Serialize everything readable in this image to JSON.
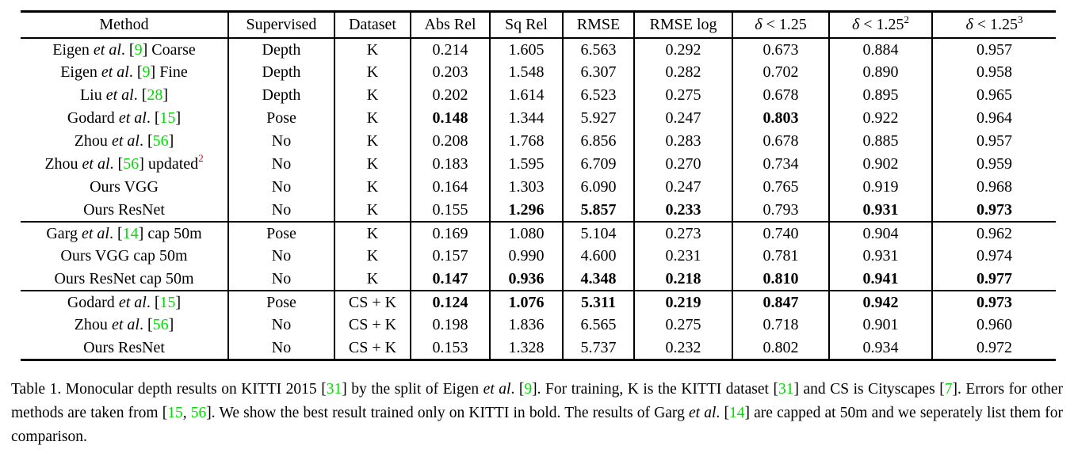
{
  "colors": {
    "citation_green": "#00dd00",
    "superscript_red": "#ee0000",
    "text": "#000000",
    "rule": "#000000",
    "background": "#ffffff"
  },
  "table": {
    "header": [
      {
        "id": "method",
        "segs": [
          {
            "t": "Method"
          }
        ]
      },
      {
        "id": "supervised",
        "segs": [
          {
            "t": "Supervised"
          }
        ]
      },
      {
        "id": "dataset",
        "segs": [
          {
            "t": "Dataset"
          }
        ]
      },
      {
        "id": "abs-rel",
        "segs": [
          {
            "t": "Abs Rel"
          }
        ]
      },
      {
        "id": "sq-rel",
        "segs": [
          {
            "t": "Sq Rel"
          }
        ]
      },
      {
        "id": "rmse",
        "segs": [
          {
            "t": "RMSE"
          }
        ]
      },
      {
        "id": "rmse-log",
        "segs": [
          {
            "t": "RMSE log"
          }
        ]
      },
      {
        "id": "delta-1",
        "segs": [
          {
            "t": "δ",
            "i": true
          },
          {
            "t": " < 1.25"
          }
        ]
      },
      {
        "id": "delta-2",
        "segs": [
          {
            "t": "δ",
            "i": true
          },
          {
            "t": " < 1.25"
          },
          {
            "t": "2",
            "sup": true
          }
        ]
      },
      {
        "id": "delta-3",
        "segs": [
          {
            "t": "δ",
            "i": true
          },
          {
            "t": " < 1.25"
          },
          {
            "t": "3",
            "sup": true
          }
        ]
      }
    ],
    "groups": [
      {
        "rows": [
          {
            "method": [
              {
                "t": "Eigen "
              },
              {
                "t": "et al",
                "i": true
              },
              {
                "t": ". ["
              },
              {
                "t": "9",
                "c": true
              },
              {
                "t": "] Coarse"
              }
            ],
            "supervised": "Depth",
            "dataset": "K",
            "values": [
              "0.214",
              "1.605",
              "6.563",
              "0.292",
              "0.673",
              "0.884",
              "0.957"
            ],
            "bold": [
              false,
              false,
              false,
              false,
              false,
              false,
              false
            ]
          },
          {
            "method": [
              {
                "t": "Eigen "
              },
              {
                "t": "et al",
                "i": true
              },
              {
                "t": ". ["
              },
              {
                "t": "9",
                "c": true
              },
              {
                "t": "] Fine"
              }
            ],
            "supervised": "Depth",
            "dataset": "K",
            "values": [
              "0.203",
              "1.548",
              "6.307",
              "0.282",
              "0.702",
              "0.890",
              "0.958"
            ],
            "bold": [
              false,
              false,
              false,
              false,
              false,
              false,
              false
            ]
          },
          {
            "method": [
              {
                "t": "Liu "
              },
              {
                "t": "et al",
                "i": true
              },
              {
                "t": ". ["
              },
              {
                "t": "28",
                "c": true
              },
              {
                "t": "]"
              }
            ],
            "supervised": "Depth",
            "dataset": "K",
            "values": [
              "0.202",
              "1.614",
              "6.523",
              "0.275",
              "0.678",
              "0.895",
              "0.965"
            ],
            "bold": [
              false,
              false,
              false,
              false,
              false,
              false,
              false
            ]
          },
          {
            "method": [
              {
                "t": "Godard "
              },
              {
                "t": "et al",
                "i": true
              },
              {
                "t": ". ["
              },
              {
                "t": "15",
                "c": true
              },
              {
                "t": "]"
              }
            ],
            "supervised": "Pose",
            "dataset": "K",
            "values": [
              "0.148",
              "1.344",
              "5.927",
              "0.247",
              "0.803",
              "0.922",
              "0.964"
            ],
            "bold": [
              true,
              false,
              false,
              false,
              true,
              false,
              false
            ]
          },
          {
            "method": [
              {
                "t": "Zhou "
              },
              {
                "t": "et al",
                "i": true
              },
              {
                "t": ". ["
              },
              {
                "t": "56",
                "c": true
              },
              {
                "t": "]"
              }
            ],
            "supervised": "No",
            "dataset": "K",
            "values": [
              "0.208",
              "1.768",
              "6.856",
              "0.283",
              "0.678",
              "0.885",
              "0.957"
            ],
            "bold": [
              false,
              false,
              false,
              false,
              false,
              false,
              false
            ]
          },
          {
            "method": [
              {
                "t": "Zhou "
              },
              {
                "t": "et al",
                "i": true
              },
              {
                "t": ". ["
              },
              {
                "t": "56",
                "c": true
              },
              {
                "t": "] updated"
              },
              {
                "t": "2",
                "sup": true,
                "red": true
              }
            ],
            "supervised": "No",
            "dataset": "K",
            "values": [
              "0.183",
              "1.595",
              "6.709",
              "0.270",
              "0.734",
              "0.902",
              "0.959"
            ],
            "bold": [
              false,
              false,
              false,
              false,
              false,
              false,
              false
            ]
          },
          {
            "method": [
              {
                "t": "Ours VGG"
              }
            ],
            "supervised": "No",
            "dataset": "K",
            "values": [
              "0.164",
              "1.303",
              "6.090",
              "0.247",
              "0.765",
              "0.919",
              "0.968"
            ],
            "bold": [
              false,
              false,
              false,
              false,
              false,
              false,
              false
            ]
          },
          {
            "method": [
              {
                "t": "Ours ResNet"
              }
            ],
            "supervised": "No",
            "dataset": "K",
            "values": [
              "0.155",
              "1.296",
              "5.857",
              "0.233",
              "0.793",
              "0.931",
              "0.973"
            ],
            "bold": [
              false,
              true,
              true,
              true,
              false,
              true,
              true
            ]
          }
        ]
      },
      {
        "rows": [
          {
            "method": [
              {
                "t": "Garg "
              },
              {
                "t": "et al",
                "i": true
              },
              {
                "t": ". ["
              },
              {
                "t": "14",
                "c": true
              },
              {
                "t": "] cap 50m"
              }
            ],
            "supervised": "Pose",
            "dataset": "K",
            "values": [
              "0.169",
              "1.080",
              "5.104",
              "0.273",
              "0.740",
              "0.904",
              "0.962"
            ],
            "bold": [
              false,
              false,
              false,
              false,
              false,
              false,
              false
            ]
          },
          {
            "method": [
              {
                "t": "Ours VGG cap 50m"
              }
            ],
            "supervised": "No",
            "dataset": "K",
            "values": [
              "0.157",
              "0.990",
              "4.600",
              "0.231",
              "0.781",
              "0.931",
              "0.974"
            ],
            "bold": [
              false,
              false,
              false,
              false,
              false,
              false,
              false
            ]
          },
          {
            "method": [
              {
                "t": "Ours ResNet cap 50m"
              }
            ],
            "supervised": "No",
            "dataset": "K",
            "values": [
              "0.147",
              "0.936",
              "4.348",
              "0.218",
              "0.810",
              "0.941",
              "0.977"
            ],
            "bold": [
              true,
              true,
              true,
              true,
              true,
              true,
              true
            ]
          }
        ]
      },
      {
        "rows": [
          {
            "method": [
              {
                "t": "Godard "
              },
              {
                "t": "et al",
                "i": true
              },
              {
                "t": ". ["
              },
              {
                "t": "15",
                "c": true
              },
              {
                "t": "]"
              }
            ],
            "supervised": "Pose",
            "dataset": "CS + K",
            "values": [
              "0.124",
              "1.076",
              "5.311",
              "0.219",
              "0.847",
              "0.942",
              "0.973"
            ],
            "bold": [
              true,
              true,
              true,
              true,
              true,
              true,
              true
            ]
          },
          {
            "method": [
              {
                "t": "Zhou "
              },
              {
                "t": "et al",
                "i": true
              },
              {
                "t": ". ["
              },
              {
                "t": "56",
                "c": true
              },
              {
                "t": "]"
              }
            ],
            "supervised": "No",
            "dataset": "CS + K",
            "values": [
              "0.198",
              "1.836",
              "6.565",
              "0.275",
              "0.718",
              "0.901",
              "0.960"
            ],
            "bold": [
              false,
              false,
              false,
              false,
              false,
              false,
              false
            ]
          },
          {
            "method": [
              {
                "t": "Ours ResNet"
              }
            ],
            "supervised": "No",
            "dataset": "CS + K",
            "values": [
              "0.153",
              "1.328",
              "5.737",
              "0.232",
              "0.802",
              "0.934",
              "0.972"
            ],
            "bold": [
              false,
              false,
              false,
              false,
              false,
              false,
              false
            ]
          }
        ]
      }
    ]
  },
  "caption": {
    "segments": [
      {
        "t": "Table 1. Monocular depth results on KITTI 2015 ["
      },
      {
        "t": "31",
        "c": true
      },
      {
        "t": "] by the split of Eigen "
      },
      {
        "t": "et al",
        "i": true
      },
      {
        "t": ". ["
      },
      {
        "t": "9",
        "c": true
      },
      {
        "t": "]. For training, K is the KITTI dataset ["
      },
      {
        "t": "31",
        "c": true
      },
      {
        "t": "] and CS is Cityscapes ["
      },
      {
        "t": "7",
        "c": true
      },
      {
        "t": "]. Errors for other methods are taken from ["
      },
      {
        "t": "15",
        "c": true
      },
      {
        "t": ", "
      },
      {
        "t": "56",
        "c": true
      },
      {
        "t": "]. We show the best result trained only on KITTI in bold. The results of Garg "
      },
      {
        "t": "et al",
        "i": true
      },
      {
        "t": ". ["
      },
      {
        "t": "14",
        "c": true
      },
      {
        "t": "] are capped at 50m and we seperately list them for comparison."
      }
    ]
  }
}
